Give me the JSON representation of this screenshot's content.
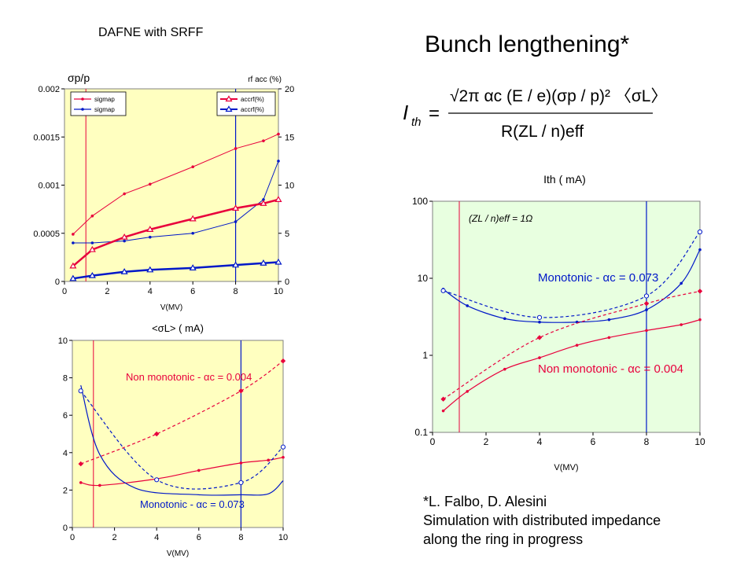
{
  "slide": {
    "subtitle": "DAFNE with SRFF",
    "title": "Bunch lengthening*",
    "credit_lines": [
      "*L. Falbo, D. Alesini",
      "Simulation with distributed impedance",
      "along the ring in progress"
    ]
  },
  "formula": {
    "lhs": "I",
    "lhs_sub": "th",
    "numerator": "√2π αc (E / e)(σp / p)² 〈σL〉",
    "denominator": "R(ZL / n)eff"
  },
  "colors": {
    "red": "#e8003c",
    "blue": "#0018c8",
    "yellow_bg": "#ffffc0",
    "green_bg": "#e8ffe0"
  },
  "chart_data": [
    {
      "id": "chart1",
      "type": "line",
      "title": "",
      "left_axis_label": "σp/p",
      "right_axis_label": "rf acc (%)",
      "xlabel": "V(MV)",
      "xlim": [
        0,
        10
      ],
      "xticks": [
        "0",
        "2",
        "4",
        "6",
        "8",
        "10"
      ],
      "ylim": [
        0,
        0.002
      ],
      "yticks": [
        "0",
        "0.0005",
        "0.001",
        "0.0015",
        "0.002"
      ],
      "y2lim": [
        0,
        20
      ],
      "y2ticks": [
        "0",
        "5",
        "10",
        "15",
        "20"
      ],
      "vlines": [
        1.0,
        8.0
      ],
      "legend_left": [
        "sigmap",
        "sigmap"
      ],
      "legend_right": [
        "accrf(%)",
        "accrf(%)"
      ],
      "series": [
        {
          "axis": "left",
          "color": "red",
          "marker": "dot",
          "width": 1,
          "x": [
            0.4,
            1.3,
            2.8,
            4.0,
            6.0,
            8.0,
            9.3,
            10.0
          ],
          "y": [
            0.00049,
            0.00068,
            0.00091,
            0.00101,
            0.00119,
            0.00138,
            0.00146,
            0.00153
          ]
        },
        {
          "axis": "left",
          "color": "blue",
          "marker": "dot",
          "width": 1,
          "x": [
            0.4,
            1.3,
            2.8,
            4.0,
            6.0,
            8.0,
            9.3,
            10.0
          ],
          "y": [
            0.0004,
            0.0004,
            0.00042,
            0.00046,
            0.0005,
            0.00062,
            0.00085,
            0.00125
          ]
        },
        {
          "axis": "right",
          "color": "red",
          "marker": "triangle",
          "width": 2.5,
          "x": [
            0.4,
            1.3,
            2.8,
            4.0,
            6.0,
            8.0,
            9.3,
            10.0
          ],
          "y": [
            1.6,
            3.3,
            4.6,
            5.4,
            6.5,
            7.6,
            8.1,
            8.5
          ]
        },
        {
          "axis": "right",
          "color": "blue",
          "marker": "triangle",
          "width": 2.5,
          "x": [
            0.4,
            1.3,
            2.8,
            4.0,
            6.0,
            8.0,
            9.3,
            10.0
          ],
          "y": [
            0.3,
            0.6,
            1.0,
            1.2,
            1.4,
            1.7,
            1.9,
            2.0
          ]
        }
      ]
    },
    {
      "id": "chart2",
      "type": "line",
      "title": "<σL> ( mA)",
      "xlabel": "V(MV)",
      "xlim": [
        0,
        10
      ],
      "xticks": [
        "0",
        "2",
        "4",
        "6",
        "8",
        "10"
      ],
      "ylim": [
        0,
        10
      ],
      "yticks": [
        "0",
        "2",
        "4",
        "6",
        "8",
        "10"
      ],
      "vlines": [
        1.0,
        8.0
      ],
      "annotations": [
        {
          "text": "Non monotonic - αc = 0.004",
          "color": "red",
          "x": 2.2,
          "y": 8.0
        },
        {
          "text": "Monotonic - αc = 0.073",
          "color": "blue",
          "x": 2.8,
          "y": 1.1
        }
      ],
      "series": [
        {
          "color": "red",
          "marker": "dot",
          "dash": false,
          "x": [
            0.4,
            1.3,
            4.0,
            6.0,
            8.0,
            9.3,
            10.0
          ],
          "y": [
            2.4,
            2.25,
            2.6,
            3.05,
            3.45,
            3.6,
            3.75
          ]
        },
        {
          "color": "red",
          "marker": "diamond",
          "dash": true,
          "points_only_at": [
            0.4,
            4.0,
            8.0,
            10.0
          ],
          "x": [
            0.4,
            4.0,
            8.0,
            10.0
          ],
          "y": [
            3.4,
            5.0,
            7.3,
            8.9
          ]
        },
        {
          "color": "blue",
          "marker": "none",
          "dash": false,
          "x": [
            0.4,
            1.3,
            3.0,
            6.0,
            8.0,
            9.3,
            10.0
          ],
          "y": [
            7.6,
            3.9,
            2.1,
            1.75,
            1.75,
            1.8,
            2.5
          ]
        },
        {
          "color": "blue",
          "marker": "circle",
          "dash": true,
          "x": [
            0.4,
            4.0,
            8.0,
            10.0
          ],
          "y": [
            7.3,
            2.55,
            2.4,
            4.3
          ]
        }
      ]
    },
    {
      "id": "chart3",
      "type": "line",
      "title": "Ith ( mA)",
      "xlabel": "V(MV)",
      "xlim": [
        0,
        10
      ],
      "xticks": [
        "0",
        "2",
        "4",
        "6",
        "8",
        "10"
      ],
      "ylim": [
        0.1,
        100
      ],
      "yscale": "log",
      "yticks": [
        "0.1",
        "1",
        "10",
        "100"
      ],
      "vlines": [
        1.0,
        8.0
      ],
      "legend_text": "(ZL / n)eff = 1Ω",
      "annotations": [
        {
          "text": "Monotonic - αc = 0.073",
          "color": "blue"
        },
        {
          "text": "Non monotonic - αc = 0.004",
          "color": "red"
        }
      ],
      "series": [
        {
          "color": "blue",
          "marker": "dot",
          "dash": false,
          "x": [
            0.4,
            1.3,
            2.7,
            4.0,
            5.4,
            6.6,
            8.0,
            9.3,
            10.0
          ],
          "y": [
            7.2,
            4.4,
            3.0,
            2.7,
            2.7,
            2.9,
            3.9,
            8.6,
            23.5
          ]
        },
        {
          "color": "blue",
          "marker": "circle",
          "dash": true,
          "x": [
            0.4,
            4.0,
            8.0,
            10.0
          ],
          "y": [
            6.9,
            3.1,
            5.9,
            40
          ]
        },
        {
          "color": "red",
          "marker": "dot",
          "dash": false,
          "x": [
            0.4,
            1.3,
            2.7,
            4.0,
            5.4,
            6.6,
            8.0,
            9.3,
            10.0
          ],
          "y": [
            0.19,
            0.34,
            0.66,
            0.93,
            1.35,
            1.7,
            2.1,
            2.5,
            2.9
          ]
        },
        {
          "color": "red",
          "marker": "diamond",
          "dash": true,
          "x": [
            0.4,
            4.0,
            8.0,
            10.0
          ],
          "y": [
            0.27,
            1.7,
            4.7,
            6.8
          ]
        }
      ]
    }
  ]
}
